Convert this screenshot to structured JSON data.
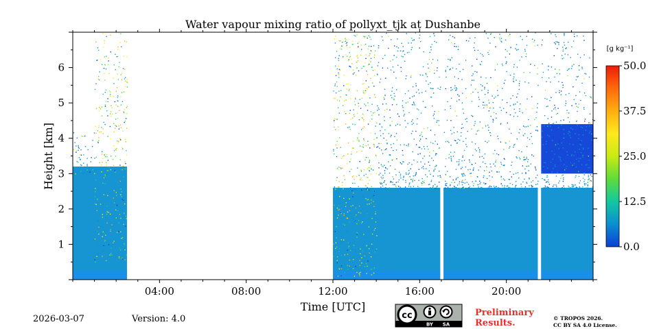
{
  "chart_data": {
    "type": "heatmap",
    "title": "Water vapour mixing ratio of pollyxt_tjk at Dushanbe",
    "xlabel": "Time [UTC]",
    "ylabel": "Height [km]",
    "xlim_hours": [
      0,
      24
    ],
    "ylim_km": [
      0,
      7
    ],
    "x_ticks": [
      {
        "value": 4,
        "label": "04:00"
      },
      {
        "value": 8,
        "label": "08:00"
      },
      {
        "value": 12,
        "label": "12:00"
      },
      {
        "value": 16,
        "label": "16:00"
      },
      {
        "value": 20,
        "label": "20:00"
      }
    ],
    "y_ticks": [
      {
        "value": 1,
        "label": "1"
      },
      {
        "value": 2,
        "label": "2"
      },
      {
        "value": 3,
        "label": "3"
      },
      {
        "value": 4,
        "label": "4"
      },
      {
        "value": 5,
        "label": "5"
      },
      {
        "value": 6,
        "label": "6"
      }
    ],
    "colorbar": {
      "label": "[g kg⁻¹]",
      "min": 0.0,
      "max": 50.0,
      "ticks": [
        {
          "value": 0.0,
          "label": "0.0"
        },
        {
          "value": 12.5,
          "label": "12.5"
        },
        {
          "value": 25.0,
          "label": "25.0"
        },
        {
          "value": 37.5,
          "label": "37.5"
        },
        {
          "value": 50.0,
          "label": "50.0"
        }
      ],
      "colors": [
        "#0a3fd6",
        "#0a8fd0",
        "#13c8a0",
        "#5fdc3a",
        "#c8ea14",
        "#ffe81e",
        "#ffae10",
        "#ff6a0a",
        "#ee1c0a"
      ]
    },
    "regions": [
      {
        "name": "night-layer",
        "t_start": 0.0,
        "t_end": 2.5,
        "top_km": 3.2,
        "value_gkg": 4
      },
      {
        "name": "no-data-gap",
        "t_start": 2.5,
        "t_end": 12.0,
        "no_data": true
      },
      {
        "name": "daytime-layer",
        "t_start": 12.0,
        "t_end": 24.0,
        "top_km": 2.6,
        "value_gkg": 4
      },
      {
        "name": "evening-elevated-layer",
        "t_start": 21.6,
        "t_end": 24.0,
        "bottom_km": 3.0,
        "top_km": 4.4,
        "value_gkg": 3
      }
    ],
    "data_gaps_hours": [
      [
        16.95,
        17.1
      ],
      [
        21.45,
        21.6
      ]
    ]
  },
  "footer": {
    "date": "2026-03-07",
    "version": "Version: 4.0",
    "preliminary": [
      "Preliminary",
      "Results."
    ],
    "copyright": [
      "© TROPOS 2026.",
      "CC BY SA 4.0 License."
    ],
    "license_badge": {
      "cc": "cc",
      "by": "BY",
      "sa": "SA"
    }
  }
}
